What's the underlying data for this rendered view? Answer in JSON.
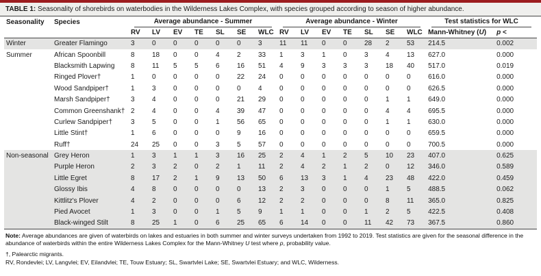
{
  "colors": {
    "accent": "#9c1c1f",
    "caption_bg": "#efefed",
    "row_shade": "#e4e4e3"
  },
  "caption": {
    "label": "TABLE 1:",
    "text": " Seasonality of shorebirds on waterbodies in the Wilderness Lakes Complex, with species grouped according to season of higher abundance."
  },
  "table": {
    "headers": {
      "seasonality": "Seasonality",
      "species": "Species",
      "summer_group": "Average abundance - Summer",
      "winter_group": "Average abundance - Winter",
      "test_group": "Test statistics for WLC",
      "site_cols": [
        "RV",
        "LV",
        "EV",
        "TE",
        "SL",
        "SE",
        "WLC"
      ],
      "mw_prefix": "Mann-Whitney (",
      "mw_u": "U",
      "mw_suffix": ")",
      "p_italic": "p",
      "p_rest": " <"
    },
    "rows": [
      {
        "group": "Winter",
        "seasonality_label": "Winter",
        "species": "Greater Flamingo",
        "summer": [
          "3",
          "0",
          "0",
          "0",
          "0",
          "0",
          "3"
        ],
        "winter": [
          "11",
          "11",
          "0",
          "0",
          "28",
          "2",
          "53"
        ],
        "u": "214.5",
        "p": "0.002"
      },
      {
        "group": "Summer",
        "seasonality_label": "Summer",
        "species": "African Spoonbill",
        "summer": [
          "8",
          "18",
          "0",
          "0",
          "4",
          "2",
          "33"
        ],
        "winter": [
          "1",
          "3",
          "1",
          "0",
          "3",
          "4",
          "13"
        ],
        "u": "627.0",
        "p": "0.000"
      },
      {
        "group": "Summer",
        "seasonality_label": "",
        "species": "Blacksmith Lapwing",
        "summer": [
          "8",
          "11",
          "5",
          "5",
          "6",
          "16",
          "51"
        ],
        "winter": [
          "4",
          "9",
          "3",
          "3",
          "3",
          "18",
          "40"
        ],
        "u": "517.0",
        "p": "0.019"
      },
      {
        "group": "Summer",
        "seasonality_label": "",
        "species": "Ringed Plover†",
        "summer": [
          "1",
          "0",
          "0",
          "0",
          "0",
          "22",
          "24"
        ],
        "winter": [
          "0",
          "0",
          "0",
          "0",
          "0",
          "0",
          "0"
        ],
        "u": "616.0",
        "p": "0.000"
      },
      {
        "group": "Summer",
        "seasonality_label": "",
        "species": "Wood Sandpiper†",
        "summer": [
          "1",
          "3",
          "0",
          "0",
          "0",
          "0",
          "4"
        ],
        "winter": [
          "0",
          "0",
          "0",
          "0",
          "0",
          "0",
          "0"
        ],
        "u": "626.5",
        "p": "0.000"
      },
      {
        "group": "Summer",
        "seasonality_label": "",
        "species": "Marsh Sandpiper†",
        "summer": [
          "3",
          "4",
          "0",
          "0",
          "0",
          "21",
          "29"
        ],
        "winter": [
          "0",
          "0",
          "0",
          "0",
          "0",
          "1",
          "1"
        ],
        "u": "649.0",
        "p": "0.000"
      },
      {
        "group": "Summer",
        "seasonality_label": "",
        "species": "Common Greenshank†",
        "summer": [
          "2",
          "4",
          "0",
          "0",
          "4",
          "39",
          "47"
        ],
        "winter": [
          "0",
          "0",
          "0",
          "0",
          "0",
          "4",
          "4"
        ],
        "u": "695.5",
        "p": "0.000"
      },
      {
        "group": "Summer",
        "seasonality_label": "",
        "species": "Curlew Sandpiper†",
        "summer": [
          "3",
          "5",
          "0",
          "0",
          "1",
          "56",
          "65"
        ],
        "winter": [
          "0",
          "0",
          "0",
          "0",
          "0",
          "1",
          "1"
        ],
        "u": "630.0",
        "p": "0.000"
      },
      {
        "group": "Summer",
        "seasonality_label": "",
        "species": "Little Stint†",
        "summer": [
          "1",
          "6",
          "0",
          "0",
          "0",
          "9",
          "16"
        ],
        "winter": [
          "0",
          "0",
          "0",
          "0",
          "0",
          "0",
          "0"
        ],
        "u": "659.5",
        "p": "0.000"
      },
      {
        "group": "Summer",
        "seasonality_label": "",
        "species": "Ruff†",
        "summer": [
          "24",
          "25",
          "0",
          "0",
          "3",
          "5",
          "57"
        ],
        "winter": [
          "0",
          "0",
          "0",
          "0",
          "0",
          "0",
          "0"
        ],
        "u": "700.5",
        "p": "0.000"
      },
      {
        "group": "Non-seasonal",
        "seasonality_label": "Non-seasonal",
        "species": "Grey Heron",
        "summer": [
          "1",
          "3",
          "1",
          "1",
          "3",
          "16",
          "25"
        ],
        "winter": [
          "2",
          "4",
          "1",
          "2",
          "5",
          "10",
          "23"
        ],
        "u": "407.0",
        "p": "0.625"
      },
      {
        "group": "Non-seasonal",
        "seasonality_label": "",
        "species": "Purple Heron",
        "summer": [
          "2",
          "3",
          "2",
          "0",
          "2",
          "1",
          "11"
        ],
        "winter": [
          "2",
          "4",
          "2",
          "1",
          "2",
          "0",
          "12"
        ],
        "u": "346.0",
        "p": "0.589"
      },
      {
        "group": "Non-seasonal",
        "seasonality_label": "",
        "species": "Little Egret",
        "summer": [
          "8",
          "17",
          "2",
          "1",
          "9",
          "13",
          "50"
        ],
        "winter": [
          "6",
          "13",
          "3",
          "1",
          "4",
          "23",
          "48"
        ],
        "u": "422.0",
        "p": "0.459"
      },
      {
        "group": "Non-seasonal",
        "seasonality_label": "",
        "species": "Glossy Ibis",
        "summer": [
          "4",
          "8",
          "0",
          "0",
          "0",
          "0",
          "13"
        ],
        "winter": [
          "2",
          "3",
          "0",
          "0",
          "0",
          "1",
          "5"
        ],
        "u": "488.5",
        "p": "0.062"
      },
      {
        "group": "Non-seasonal",
        "seasonality_label": "",
        "species": "Kittlitz's Plover",
        "summer": [
          "4",
          "2",
          "0",
          "0",
          "0",
          "6",
          "12"
        ],
        "winter": [
          "2",
          "2",
          "0",
          "0",
          "0",
          "8",
          "11"
        ],
        "u": "365.0",
        "p": "0.825"
      },
      {
        "group": "Non-seasonal",
        "seasonality_label": "",
        "species": "Pied Avocet",
        "summer": [
          "1",
          "3",
          "0",
          "0",
          "1",
          "5",
          "9"
        ],
        "winter": [
          "1",
          "1",
          "0",
          "0",
          "1",
          "2",
          "5"
        ],
        "u": "422.5",
        "p": "0.408"
      },
      {
        "group": "Non-seasonal",
        "seasonality_label": "",
        "species": "Black-winged Stilt",
        "summer": [
          "8",
          "25",
          "1",
          "0",
          "6",
          "25",
          "65"
        ],
        "winter": [
          "6",
          "14",
          "0",
          "0",
          "11",
          "42",
          "73"
        ],
        "u": "367.5",
        "p": "0.860"
      }
    ]
  },
  "notes": {
    "note_label": "Note:",
    "note_body_1": " Average abundances are given of waterbirds on lakes and estuaries in both summer and winter surveys undertaken from 1992 to 2019.  Test statistics are given for the seasonal difference in the abundance of waterbirds within the entire Wilderness Lakes Complex for the Mann-Whitney ",
    "note_u": "U",
    "note_body_2": " test where ",
    "note_p": "p",
    "note_body_3": ", probability value.",
    "dagger_note": "†, Palearctic migrants.",
    "abbrev_note": "RV, Rondevlei; LV, Langvlei; EV, Eilandvlei; TE, Touw Estuary; SL, Swartvlei Lake; SE, Swartvlei Estuary; and WLC, Wilderness."
  }
}
